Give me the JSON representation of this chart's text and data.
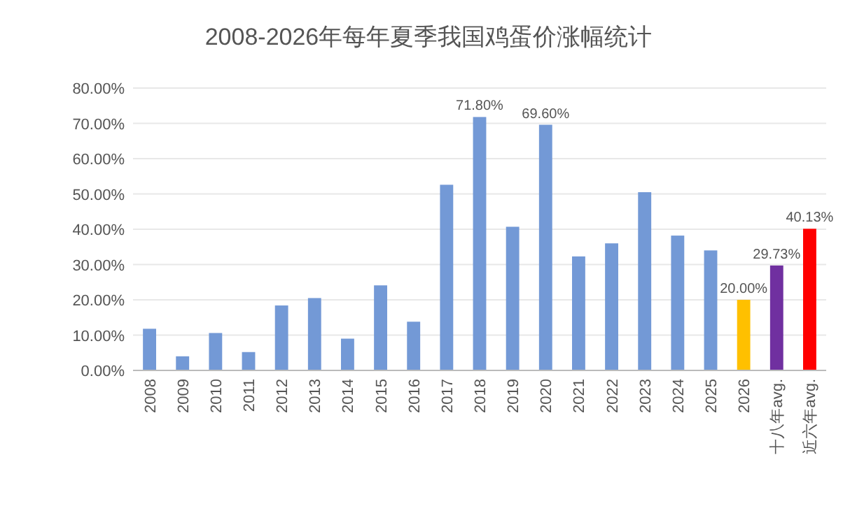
{
  "chart_data": {
    "type": "bar",
    "title": "2008-2026年每年夏季我国鸡蛋价涨幅统计",
    "categories": [
      "2008",
      "2009",
      "2010",
      "2011",
      "2012",
      "2013",
      "2014",
      "2015",
      "2016",
      "2017",
      "2018",
      "2019",
      "2020",
      "2021",
      "2022",
      "2023",
      "2024",
      "2025",
      "2026",
      "十八年avg.",
      "近六年avg."
    ],
    "values": [
      11.8,
      4.0,
      10.6,
      5.2,
      18.4,
      20.5,
      9.0,
      24.1,
      13.8,
      52.6,
      71.8,
      40.7,
      69.6,
      32.3,
      36.0,
      50.5,
      38.2,
      34.0,
      20.0,
      29.73,
      40.13
    ],
    "value_labels": [
      null,
      null,
      null,
      null,
      null,
      null,
      null,
      null,
      null,
      null,
      "71.80%",
      null,
      "69.60%",
      null,
      null,
      null,
      null,
      null,
      "20.00%",
      "29.73%",
      "40.13%"
    ],
    "colors": [
      "#7399d6",
      "#7399d6",
      "#7399d6",
      "#7399d6",
      "#7399d6",
      "#7399d6",
      "#7399d6",
      "#7399d6",
      "#7399d6",
      "#7399d6",
      "#7399d6",
      "#7399d6",
      "#7399d6",
      "#7399d6",
      "#7399d6",
      "#7399d6",
      "#7399d6",
      "#7399d6",
      "#ffc000",
      "#7030a0",
      "#ff0000"
    ],
    "ylim": [
      0,
      80
    ],
    "yticks": [
      {
        "value": 0,
        "label": "0.00%"
      },
      {
        "value": 10,
        "label": "10.00%"
      },
      {
        "value": 20,
        "label": "20.00%"
      },
      {
        "value": 30,
        "label": "30.00%"
      },
      {
        "value": 40,
        "label": "40.00%"
      },
      {
        "value": 50,
        "label": "50.00%"
      },
      {
        "value": 60,
        "label": "60.00%"
      },
      {
        "value": 70,
        "label": "70.00%"
      },
      {
        "value": 80,
        "label": "80.00%"
      }
    ],
    "grid": "y"
  }
}
